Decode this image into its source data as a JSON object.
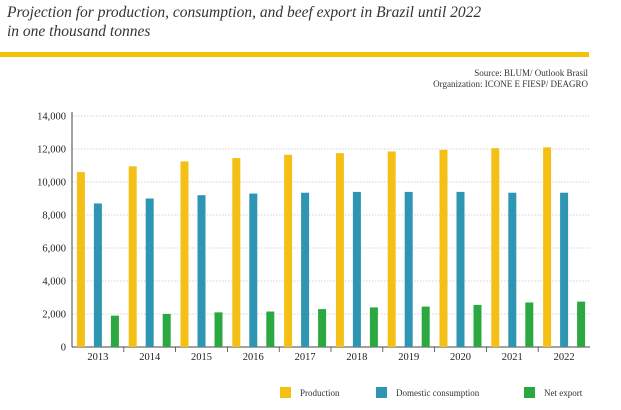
{
  "title_lines": [
    "Projection for production, consumption, and beef export in Brazil until 2022",
    "in one thousand tonnes"
  ],
  "source_lines": [
    "Source: BLUM/ Outlook Brasil",
    "Organization: ICONE E FIESP/ DEAGRO"
  ],
  "chart_data": {
    "type": "bar",
    "title": "Projection for production, consumption, and beef export in Brazil until 2022",
    "subtitle": "in one thousand tonnes",
    "xlabel": "",
    "ylabel": "",
    "ylim": [
      0,
      14000
    ],
    "yticks": [
      0,
      2000,
      4000,
      6000,
      8000,
      10000,
      12000,
      14000
    ],
    "ytick_labels": [
      "0",
      "2,000",
      "4,000",
      "6,000",
      "8,000",
      "10,000",
      "12,000",
      "14,000"
    ],
    "grid": true,
    "legend_position": "bottom",
    "categories": [
      "2013",
      "2014",
      "2015",
      "2016",
      "2017",
      "2018",
      "2019",
      "2020",
      "2021",
      "2022"
    ],
    "series": [
      {
        "name": "Production",
        "color": "#f5c016",
        "values": [
          10600,
          10950,
          11250,
          11450,
          11650,
          11750,
          11850,
          11950,
          12050,
          12100
        ]
      },
      {
        "name": "Domestic consumption",
        "color": "#2e96b2",
        "values": [
          8700,
          9000,
          9200,
          9300,
          9350,
          9400,
          9400,
          9400,
          9350,
          9350
        ]
      },
      {
        "name": "Net export",
        "color": "#2ca841",
        "values": [
          1900,
          2000,
          2100,
          2150,
          2300,
          2400,
          2450,
          2550,
          2700,
          2750
        ]
      }
    ]
  }
}
